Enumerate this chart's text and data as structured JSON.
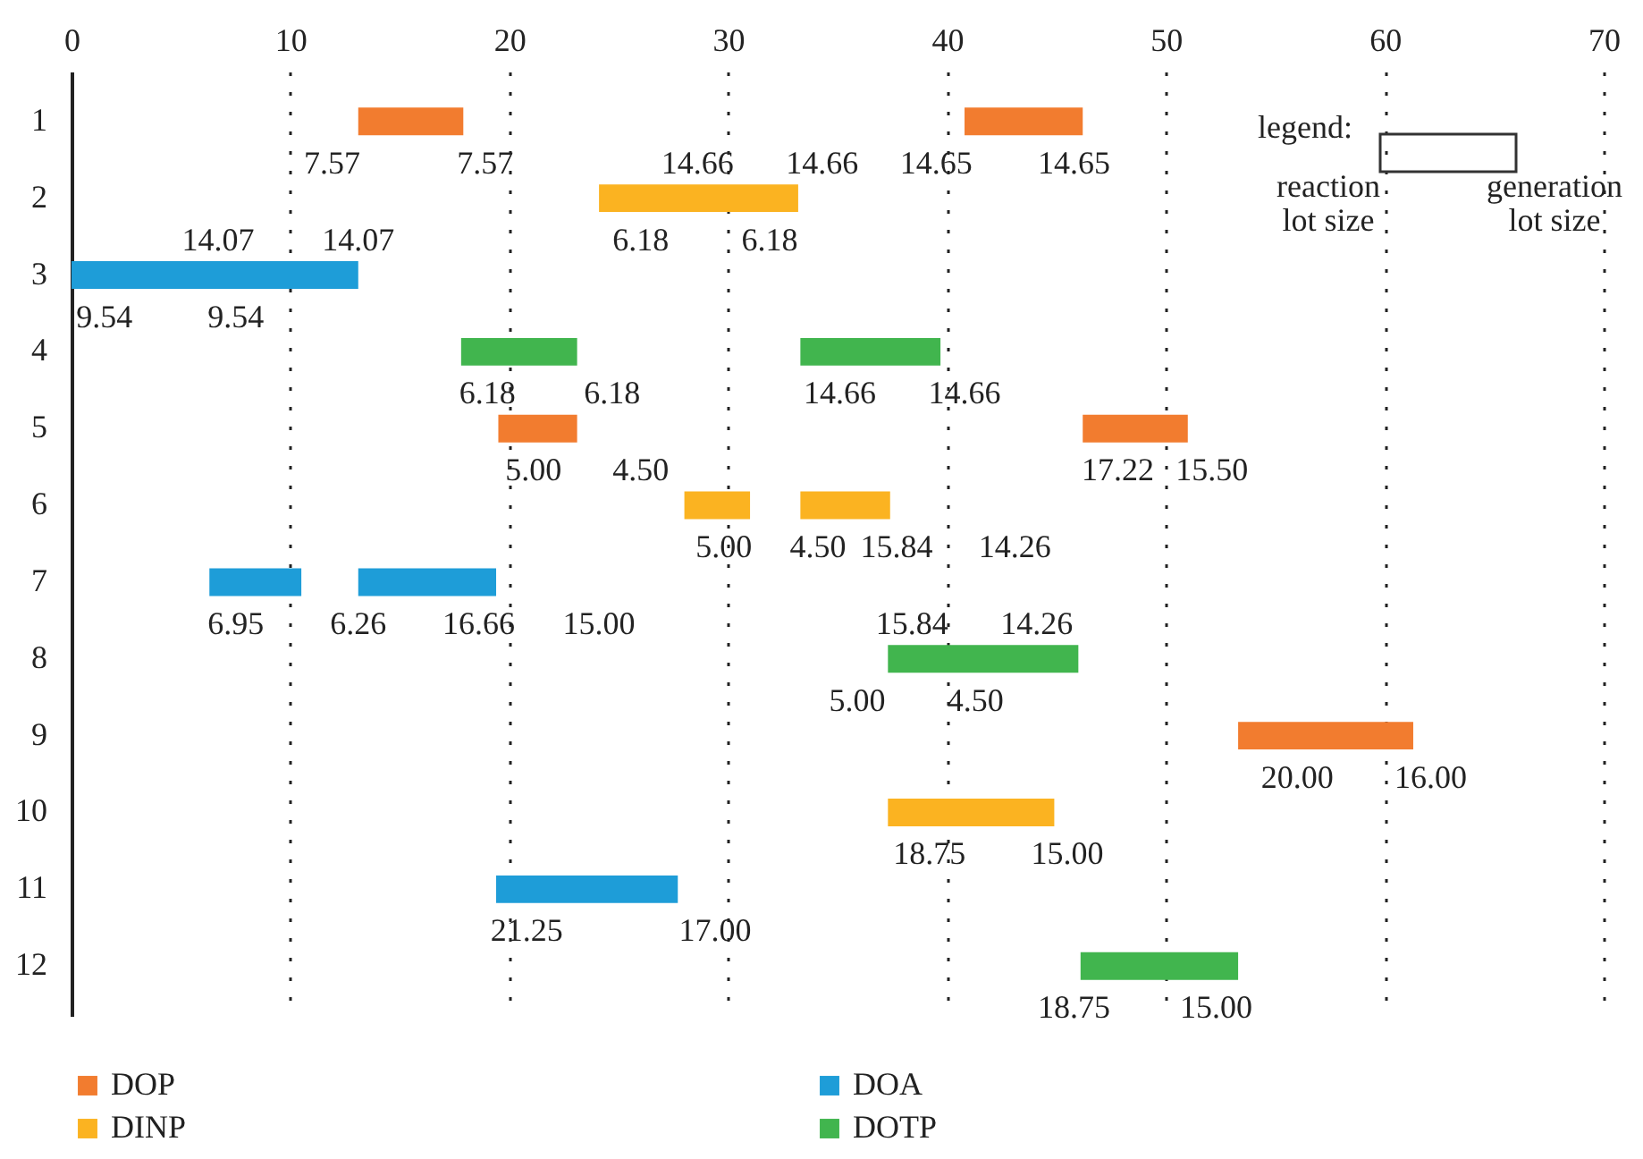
{
  "chart_data": {
    "type": "bar",
    "orientation": "horizontal",
    "categories": [
      "1",
      "2",
      "3",
      "4",
      "5",
      "6",
      "7",
      "8",
      "9",
      "10",
      "11",
      "12"
    ],
    "series": [
      {
        "name": "DOP",
        "color": "#f27c2f",
        "base": [
          13.1,
          null,
          null,
          null,
          19.5,
          null,
          null,
          null,
          53.3,
          null,
          null,
          null
        ],
        "values": [
          4.8,
          null,
          null,
          null,
          3.6,
          null,
          null,
          null,
          8.0,
          null,
          null,
          null
        ]
      },
      {
        "name": "DOA",
        "color": "#1e9dd8",
        "base": [
          null,
          null,
          0,
          null,
          null,
          null,
          6.3,
          null,
          null,
          null,
          19.4,
          null
        ],
        "values": [
          null,
          null,
          13.1,
          null,
          null,
          null,
          4.2,
          null,
          null,
          null,
          8.3,
          null
        ]
      },
      {
        "name": "DINP",
        "color": "#fbb321",
        "base": [
          null,
          24.1,
          null,
          null,
          null,
          28.0,
          null,
          null,
          null,
          37.3,
          null,
          null
        ],
        "values": [
          null,
          9.1,
          null,
          null,
          null,
          3.0,
          null,
          null,
          null,
          7.6,
          null,
          null
        ]
      },
      {
        "name": "DOTP",
        "color": "#41b54e",
        "base": [
          null,
          null,
          null,
          17.8,
          null,
          null,
          null,
          37.3,
          null,
          null,
          null,
          46.1
        ],
        "values": [
          null,
          null,
          null,
          5.3,
          null,
          null,
          null,
          8.7,
          null,
          null,
          null,
          7.2
        ]
      },
      {
        "color": "#f27c2f",
        "base": [
          40.8,
          null,
          null,
          null,
          46.2,
          null,
          null,
          null,
          null,
          null,
          null,
          null
        ],
        "values": [
          5.4,
          null,
          null,
          null,
          4.8,
          null,
          null,
          null,
          null,
          null,
          null,
          null
        ]
      },
      {
        "color": "#1e9dd8",
        "base": [
          null,
          null,
          null,
          null,
          null,
          null,
          13.1,
          null,
          null,
          null,
          null,
          null
        ],
        "values": [
          null,
          null,
          null,
          null,
          null,
          null,
          6.3,
          null,
          null,
          null,
          null,
          null
        ]
      },
      {
        "color": "#fbb321",
        "base": [
          null,
          null,
          null,
          null,
          null,
          33.3,
          null,
          null,
          null,
          null,
          null,
          null
        ],
        "values": [
          null,
          null,
          null,
          null,
          null,
          4.1,
          null,
          null,
          null,
          null,
          null,
          null
        ]
      },
      {
        "color": "#41b54e",
        "base": [
          null,
          null,
          null,
          33.3,
          null,
          null,
          null,
          null,
          null,
          null,
          null,
          null
        ],
        "values": [
          null,
          null,
          null,
          6.4,
          null,
          null,
          null,
          null,
          null,
          null,
          null,
          null
        ]
      }
    ],
    "xlim": [
      0,
      70
    ],
    "xticks": [
      0,
      10,
      20,
      30,
      40,
      50,
      60,
      70
    ],
    "grid": "x",
    "legend": "bottom",
    "annotations": [
      "legend:",
      "reaction lot size",
      "generation lot size",
      "7.57",
      "7.57",
      "14.66",
      "14.66",
      "14.65",
      "14.65",
      "14.07",
      "14.07",
      "6.18",
      "6.18",
      "9.54",
      "9.54",
      "6.18",
      "6.18",
      "14.66",
      "14.66",
      "5.00",
      "4.50",
      "17.22",
      "15.50",
      "5.00",
      "4.50",
      "15.84",
      "14.26",
      "6.95",
      "6.26",
      "16.66",
      "15.00",
      "15.84",
      "14.26",
      "5.00",
      "4.50",
      "20.00",
      "16.00",
      "18.75",
      "15.00",
      "21.25",
      "17.00",
      "18.75",
      "15.00"
    ]
  }
}
